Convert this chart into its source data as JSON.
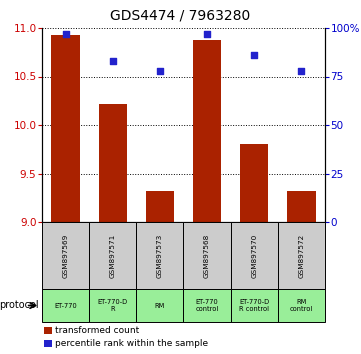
{
  "title": "GDS4474 / 7963280",
  "samples": [
    "GSM897569",
    "GSM897571",
    "GSM897573",
    "GSM897568",
    "GSM897570",
    "GSM897572"
  ],
  "bar_values": [
    10.93,
    10.22,
    9.32,
    10.88,
    9.8,
    9.32
  ],
  "dot_values": [
    97,
    83,
    78,
    97,
    86,
    78
  ],
  "ymin": 9,
  "ymax": 11,
  "y2min": 0,
  "y2max": 100,
  "yticks": [
    9,
    9.5,
    10,
    10.5,
    11
  ],
  "y2ticks": [
    0,
    25,
    50,
    75,
    100
  ],
  "bar_color": "#aa2200",
  "dot_color": "#2222cc",
  "bar_bottom": 9,
  "protocols": [
    "ET-770",
    "ET-770-D\nR",
    "RM",
    "ET-770\ncontrol",
    "ET-770-D\nR control",
    "RM\ncontrol"
  ],
  "protocol_label": "protocol",
  "legend1": "transformed count",
  "legend2": "percentile rank within the sample",
  "sample_bg": "#cccccc",
  "protocol_bg": "#99ee99",
  "title_fontsize": 10
}
